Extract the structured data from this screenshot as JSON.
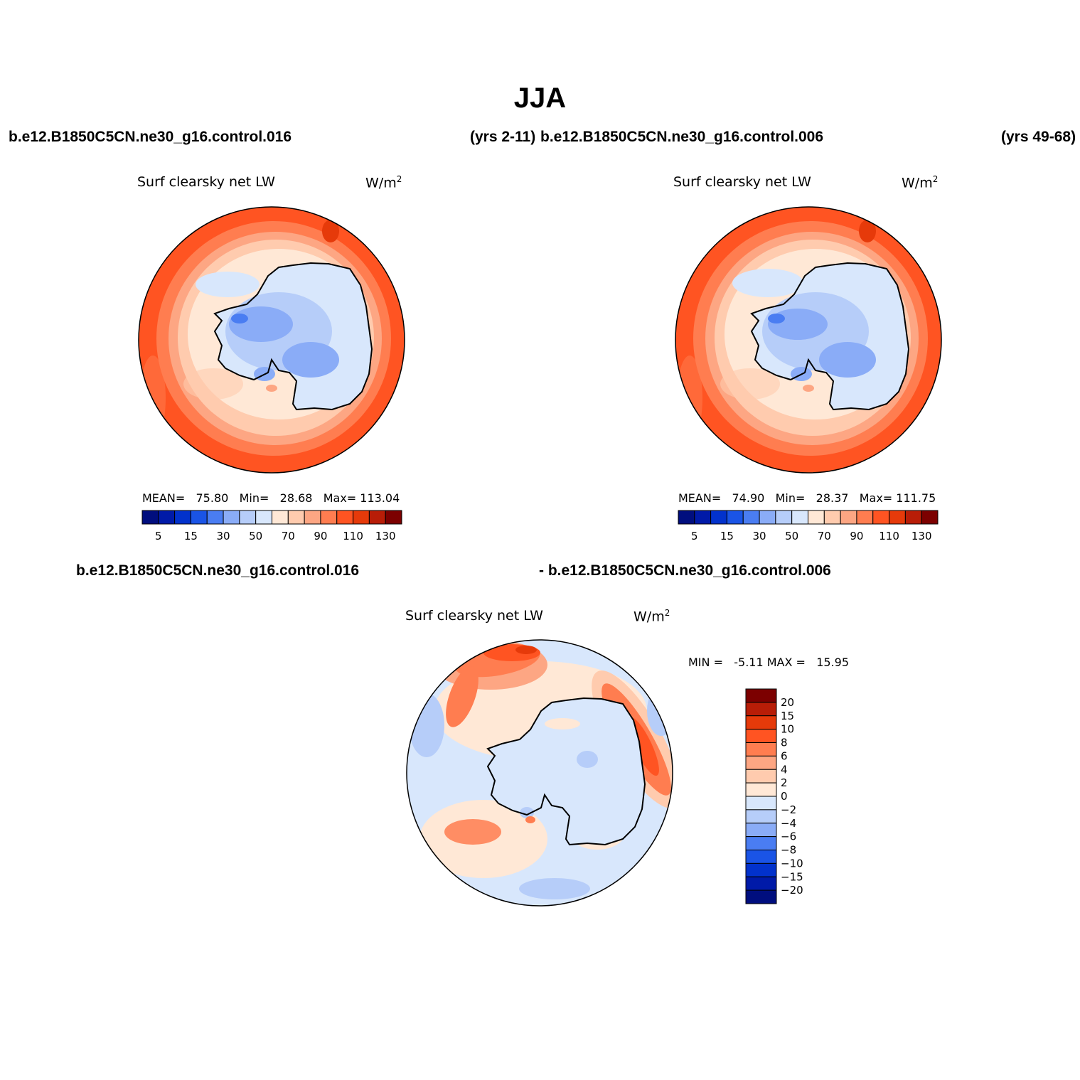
{
  "title": "JJA",
  "header": {
    "case1": "b.e12.B1850C5CN.ne30_g16.control.016",
    "case1_years": "(yrs 2-11)",
    "case2": "b.e12.B1850C5CN.ne30_g16.control.006",
    "case2_years": "(yrs 49-68)"
  },
  "diff_header": {
    "left": "b.e12.B1850C5CN.ne30_g16.control.016",
    "right": "- b.e12.B1850C5CN.ne30_g16.control.006"
  },
  "panels": [
    {
      "variable": "Surf clearsky net LW",
      "units": "W/m",
      "units_sup": "2",
      "stats": {
        "mean_label": "MEAN=",
        "mean": "75.80",
        "min_label": "Min=",
        "min": "28.68",
        "max_label": "Max=",
        "max": "113.04"
      }
    },
    {
      "variable": "Surf clearsky net LW",
      "units": "W/m",
      "units_sup": "2",
      "stats": {
        "mean_label": "MEAN=",
        "mean": "74.90",
        "min_label": "Min=",
        "min": "28.37",
        "max_label": "Max=",
        "max": "111.75"
      }
    },
    {
      "variable": "Surf clearsky net LW",
      "units": "W/m",
      "units_sup": "2",
      "stats": {
        "min_label": "MIN =",
        "min": "-5.11",
        "max_label": "MAX =",
        "max": "15.95"
      }
    }
  ],
  "colorbar_horizontal": {
    "colors": [
      "#000e7e",
      "#001aa8",
      "#0232cc",
      "#1a54e6",
      "#4a7df2",
      "#8aacf7",
      "#b6cdf9",
      "#d8e7fc",
      "#ffe8d6",
      "#ffcbae",
      "#fda683",
      "#ff7d50",
      "#ff5422",
      "#e63a0a",
      "#b81d07",
      "#7c0000"
    ],
    "tick_labels": [
      "5",
      "15",
      "30",
      "50",
      "70",
      "90",
      "110",
      "130"
    ]
  },
  "colorbar_vertical": {
    "colors_top_to_bottom": [
      "#7c0000",
      "#b81d07",
      "#e63a0a",
      "#ff5422",
      "#ff7d50",
      "#fda683",
      "#ffcbae",
      "#ffe8d6",
      "#d8e7fc",
      "#b6cdf9",
      "#8aacf7",
      "#4a7df2",
      "#1a54e6",
      "#0232cc",
      "#001aa8",
      "#000e7e"
    ],
    "tick_labels": [
      "20",
      "15",
      "10",
      "8",
      "6",
      "4",
      "2",
      "0",
      "−2",
      "−4",
      "−6",
      "−8",
      "−10",
      "−15",
      "−20"
    ]
  }
}
